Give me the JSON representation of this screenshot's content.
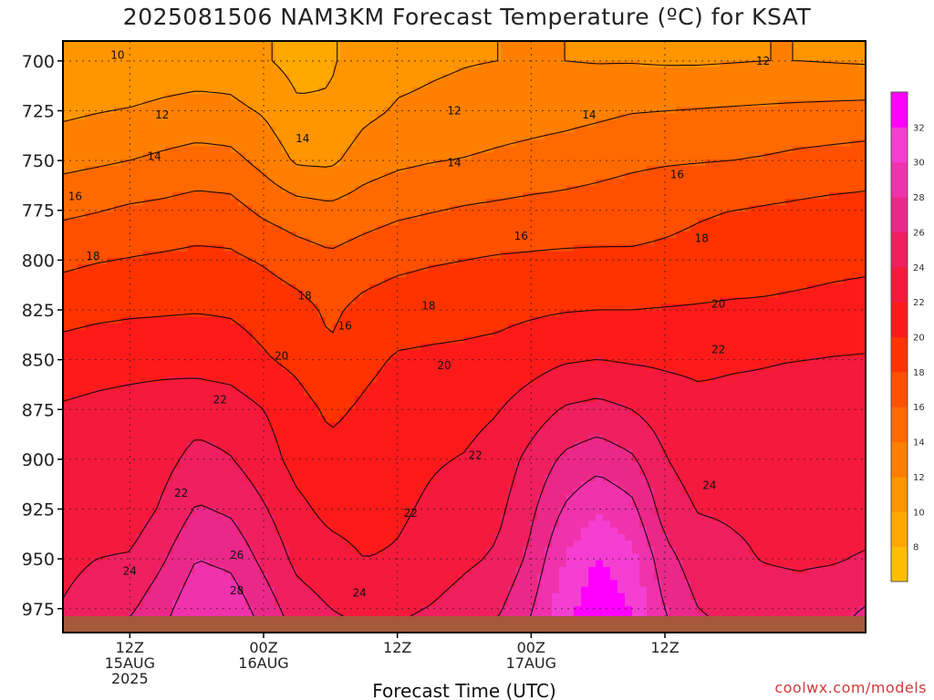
{
  "title": "2025081506 NAM3KM Forecast Temperature (ºC) for KSAT",
  "credit": "coolwx.com/models",
  "chart_data": {
    "type": "heatmap",
    "title": "2025081506 NAM3KM Forecast Temperature (ºC) for KSAT",
    "xlabel": "Forecast Time (UTC)",
    "ylabel": "",
    "y_ticks": [
      700,
      725,
      750,
      775,
      800,
      825,
      850,
      875,
      900,
      925,
      950,
      975
    ],
    "ylim": [
      987,
      690
    ],
    "x_hours": [
      6,
      9,
      12,
      15,
      18,
      21,
      24,
      27,
      30,
      33,
      36,
      39,
      42,
      45,
      48,
      51,
      54,
      57,
      60,
      63,
      66,
      69,
      72,
      75,
      78
    ],
    "xlim": [
      6,
      78
    ],
    "x_ticks": [
      {
        "hour": 12,
        "lines": [
          "12Z",
          "15AUG",
          "2025"
        ]
      },
      {
        "hour": 24,
        "lines": [
          "00Z",
          "16AUG"
        ]
      },
      {
        "hour": 36,
        "lines": [
          "12Z"
        ]
      },
      {
        "hour": 48,
        "lines": [
          "00Z",
          "17AUG"
        ]
      },
      {
        "hour": 60,
        "lines": [
          "12Z"
        ]
      }
    ],
    "series": [
      {
        "name": "700",
        "values": [
          10.0,
          10.4,
          10.6,
          10.9,
          11.1,
          11.0,
          10.2,
          9.4,
          9.8,
          10.8,
          11.4,
          11.7,
          11.9,
          12.0,
          12.1,
          12.0,
          11.9,
          11.9,
          11.8,
          11.8,
          11.9,
          12.0,
          12.0,
          11.9,
          11.8
        ]
      },
      {
        "name": "725",
        "values": [
          11.6,
          11.9,
          12.1,
          12.4,
          12.6,
          12.5,
          11.8,
          10.3,
          10.2,
          11.5,
          12.2,
          12.4,
          12.6,
          12.9,
          13.1,
          13.3,
          13.6,
          13.9,
          14.0,
          14.1,
          14.2,
          14.3,
          14.4,
          14.5,
          14.6
        ]
      },
      {
        "name": "750",
        "values": [
          13.4,
          13.7,
          14.0,
          14.4,
          14.8,
          14.6,
          13.4,
          11.7,
          11.6,
          13.0,
          13.6,
          13.9,
          14.1,
          14.4,
          14.7,
          15.0,
          15.3,
          15.6,
          15.8,
          15.9,
          16.0,
          16.2,
          16.5,
          16.7,
          16.9
        ]
      },
      {
        "name": "775",
        "values": [
          15.6,
          15.9,
          16.3,
          16.5,
          16.8,
          16.7,
          15.6,
          14.9,
          14.5,
          15.1,
          15.6,
          15.9,
          16.2,
          16.4,
          16.6,
          16.7,
          16.9,
          17.2,
          17.5,
          17.8,
          18.0,
          18.2,
          18.4,
          18.6,
          18.7
        ]
      },
      {
        "name": "800",
        "values": [
          17.6,
          17.9,
          18.1,
          18.3,
          18.5,
          18.4,
          17.8,
          17.0,
          16.4,
          17.0,
          17.5,
          17.8,
          18.0,
          18.2,
          18.3,
          18.4,
          18.4,
          18.3,
          18.4,
          18.6,
          18.9,
          19.2,
          19.4,
          19.6,
          19.7
        ]
      },
      {
        "name": "825",
        "values": [
          19.2,
          19.5,
          19.7,
          19.8,
          19.9,
          19.8,
          19.3,
          18.7,
          17.6,
          18.6,
          19.1,
          19.3,
          19.4,
          19.5,
          19.7,
          19.9,
          20.0,
          20.0,
          20.1,
          20.2,
          20.3,
          20.3,
          20.4,
          20.5,
          20.6
        ]
      },
      {
        "name": "850",
        "values": [
          21.0,
          21.3,
          21.4,
          21.4,
          21.3,
          21.0,
          20.2,
          19.5,
          18.3,
          19.5,
          20.2,
          20.3,
          20.4,
          20.6,
          21.2,
          21.8,
          22.0,
          21.8,
          21.7,
          21.6,
          21.8,
          21.9,
          22.0,
          22.1,
          22.2
        ]
      },
      {
        "name": "875",
        "values": [
          22.2,
          22.4,
          22.6,
          22.9,
          23.2,
          23.0,
          22.0,
          20.8,
          19.6,
          20.3,
          20.9,
          21.2,
          21.4,
          21.9,
          23.0,
          24.2,
          24.6,
          24.0,
          23.0,
          22.5,
          22.5,
          22.5,
          22.6,
          22.6,
          22.6
        ]
      },
      {
        "name": "900",
        "values": [
          22.9,
          22.8,
          22.6,
          23.4,
          24.6,
          24.1,
          22.9,
          21.3,
          20.6,
          20.8,
          21.3,
          21.8,
          22.1,
          22.8,
          24.6,
          26.4,
          27.2,
          26.3,
          24.1,
          23.0,
          23.1,
          23.0,
          22.9,
          22.9,
          22.9
        ]
      },
      {
        "name": "925",
        "values": [
          23.2,
          23.0,
          22.8,
          24.3,
          26.2,
          25.7,
          24.2,
          22.5,
          21.4,
          21.2,
          21.7,
          22.3,
          22.9,
          23.5,
          25.6,
          28.2,
          29.8,
          28.6,
          25.1,
          23.9,
          23.8,
          23.7,
          23.4,
          23.2,
          23.1
        ]
      },
      {
        "name": "950",
        "values": [
          23.6,
          24.0,
          24.2,
          25.8,
          28.0,
          27.5,
          25.5,
          23.5,
          22.8,
          22.0,
          22.2,
          22.8,
          23.6,
          24.3,
          26.5,
          30.1,
          32.2,
          30.6,
          26.7,
          24.9,
          24.3,
          23.9,
          23.7,
          23.8,
          24.2
        ]
      },
      {
        "name": "975",
        "values": [
          24.1,
          24.8,
          25.7,
          27.3,
          29.6,
          29.4,
          27.1,
          24.9,
          24.0,
          23.5,
          23.6,
          24.1,
          24.9,
          25.7,
          27.8,
          31.3,
          33.4,
          31.9,
          27.9,
          26.0,
          25.4,
          25.0,
          24.9,
          25.4,
          26.1
        ]
      },
      {
        "name": "987",
        "values": [
          24.4,
          25.3,
          26.5,
          28.0,
          30.2,
          30.1,
          27.8,
          25.6,
          24.6,
          24.1,
          24.2,
          24.8,
          25.6,
          26.4,
          28.5,
          32.0,
          33.9,
          32.4,
          28.5,
          26.6,
          25.9,
          25.5,
          25.3,
          25.8,
          26.6
        ]
      }
    ],
    "contour_levels": [
      10,
      12,
      14,
      16,
      18,
      20,
      22,
      24,
      26,
      28
    ],
    "contour_labels": [
      {
        "text": "10",
        "hour": 10.9,
        "p": 697
      },
      {
        "text": "12",
        "hour": 68.8,
        "p": 700
      },
      {
        "text": "12",
        "hour": 14.9,
        "p": 727
      },
      {
        "text": "12",
        "hour": 41.1,
        "p": 725
      },
      {
        "text": "14",
        "hour": 53.2,
        "p": 727
      },
      {
        "text": "14",
        "hour": 14.2,
        "p": 748
      },
      {
        "text": "14",
        "hour": 27.5,
        "p": 739
      },
      {
        "text": "14",
        "hour": 41.1,
        "p": 751
      },
      {
        "text": "16",
        "hour": 61.1,
        "p": 757
      },
      {
        "text": "16",
        "hour": 7.1,
        "p": 768
      },
      {
        "text": "16",
        "hour": 47.1,
        "p": 788
      },
      {
        "text": "18",
        "hour": 63.3,
        "p": 789
      },
      {
        "text": "18",
        "hour": 8.7,
        "p": 798
      },
      {
        "text": "18",
        "hour": 27.7,
        "p": 818
      },
      {
        "text": "16",
        "hour": 31.3,
        "p": 833
      },
      {
        "text": "18",
        "hour": 38.8,
        "p": 823
      },
      {
        "text": "20",
        "hour": 64.8,
        "p": 822
      },
      {
        "text": "20",
        "hour": 25.6,
        "p": 848
      },
      {
        "text": "20",
        "hour": 40.2,
        "p": 853
      },
      {
        "text": "22",
        "hour": 64.8,
        "p": 845
      },
      {
        "text": "22",
        "hour": 20.1,
        "p": 870
      },
      {
        "text": "22",
        "hour": 43.0,
        "p": 898
      },
      {
        "text": "22",
        "hour": 16.6,
        "p": 917
      },
      {
        "text": "24",
        "hour": 64.0,
        "p": 913
      },
      {
        "text": "22",
        "hour": 37.2,
        "p": 927
      },
      {
        "text": "26",
        "hour": 21.6,
        "p": 948
      },
      {
        "text": "24",
        "hour": 12.0,
        "p": 956
      },
      {
        "text": "28",
        "hour": 21.6,
        "p": 966
      },
      {
        "text": "24",
        "hour": 32.6,
        "p": 967
      }
    ],
    "colorbar": {
      "ticks": [
        8,
        10,
        12,
        14,
        16,
        18,
        20,
        22,
        24,
        26,
        28,
        30,
        32
      ],
      "colors": [
        "#ffbf00",
        "#ffa800",
        "#ff9500",
        "#ff8000",
        "#ff6a00",
        "#ff5000",
        "#ff3300",
        "#ff1a1a",
        "#f5193c",
        "#ef1f60",
        "#eb2889",
        "#f032ad",
        "#f43fd2",
        "#ff00ff"
      ]
    },
    "terrain_color": "#a5583a",
    "grid": "dotted"
  }
}
